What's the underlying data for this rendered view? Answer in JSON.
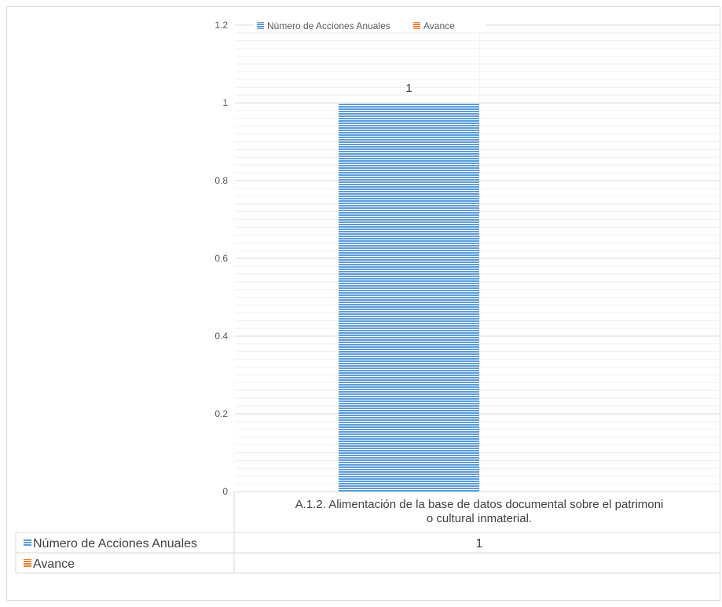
{
  "chart_data": {
    "type": "bar",
    "categories": [
      "A.1.2. Alimentación de la base de datos documental sobre el patrimonio cultural inmaterial."
    ],
    "category_label_lines": [
      "A.1.2. Alimentación de la base de datos documental sobre el patrimoni",
      "o cultural inmaterial."
    ],
    "series": [
      {
        "name": "Número de Acciones Anuales",
        "values": [
          1
        ],
        "color": "#5b9bd5"
      },
      {
        "name": "Avance",
        "values": [
          null
        ],
        "color": "#ed7d31"
      }
    ],
    "ylim": [
      0,
      1.2
    ],
    "yticks": [
      "0",
      "0.2",
      "0.4",
      "0.6",
      "0.8",
      "1",
      "1.2"
    ],
    "data_labels": [
      "1"
    ],
    "legend_position": "top",
    "grid": true,
    "data_table": {
      "rows": [
        {
          "series": "Número de Acciones Anuales",
          "cells": [
            "1"
          ]
        },
        {
          "series": "Avance",
          "cells": [
            ""
          ]
        }
      ]
    }
  }
}
